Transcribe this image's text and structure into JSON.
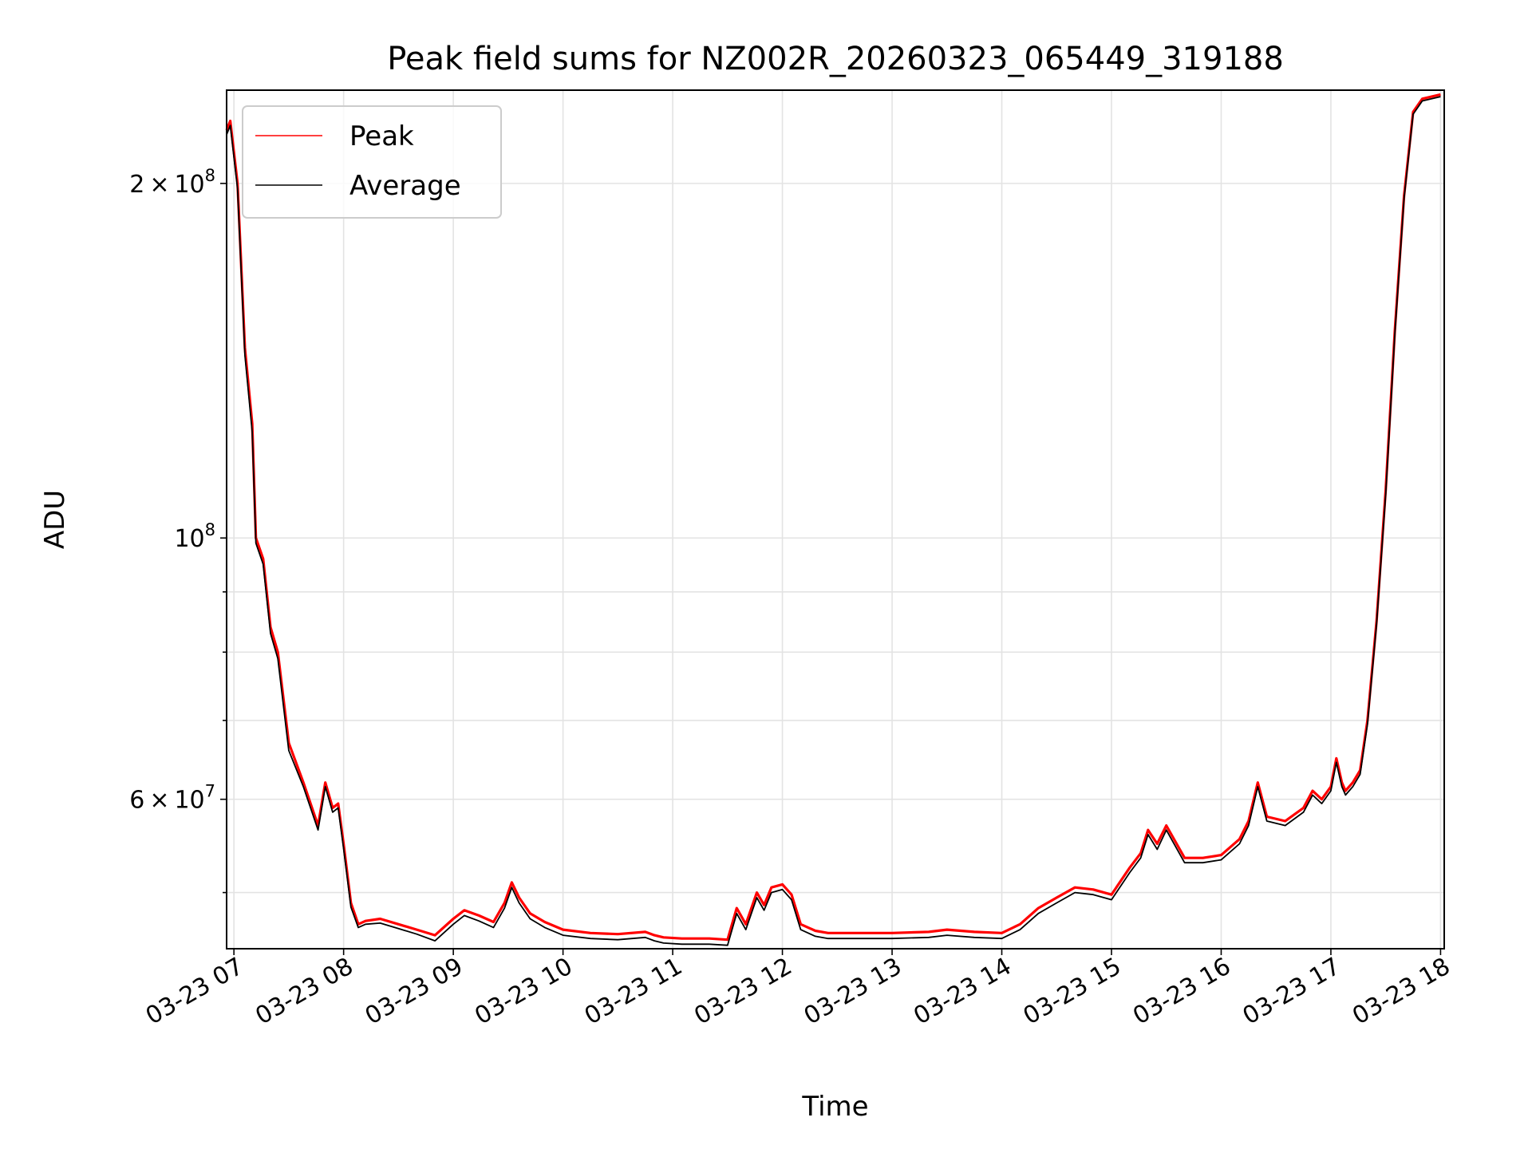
{
  "chart_data": {
    "type": "line",
    "title": "Peak field sums for NZ002R_20260323_065449_319188",
    "xlabel": "Time",
    "ylabel": "ADU",
    "yscale": "log",
    "ylim": [
      44800000,
      240000000
    ],
    "xlim": [
      "2026-03-23 06:56",
      "2026-03-23 18:02"
    ],
    "x_ticks": [
      "03-23 07",
      "03-23 08",
      "03-23 09",
      "03-23 10",
      "03-23 11",
      "03-23 12",
      "03-23 13",
      "03-23 14",
      "03-23 15",
      "03-23 16",
      "03-23 17",
      "03-23 18"
    ],
    "y_major_ticks": [
      {
        "value": 200000000,
        "mantissa": "2",
        "exponent": "8"
      },
      {
        "value": 100000000,
        "mantissa": "",
        "exponent": "8"
      },
      {
        "value": 60000000,
        "mantissa": "6",
        "exponent": "7"
      }
    ],
    "y_minor_ticks": [
      50000000,
      70000000,
      80000000,
      90000000
    ],
    "grid": true,
    "legend_position": "top-left",
    "series": [
      {
        "name": "Peak",
        "color": "#ff0000",
        "x": [
          "2026-03-23 06:56",
          "2026-03-23 06:58",
          "2026-03-23 07:02",
          "2026-03-23 07:06",
          "2026-03-23 07:10",
          "2026-03-23 07:12",
          "2026-03-23 07:16",
          "2026-03-23 07:20",
          "2026-03-23 07:24",
          "2026-03-23 07:30",
          "2026-03-23 07:38",
          "2026-03-23 07:46",
          "2026-03-23 07:50",
          "2026-03-23 07:54",
          "2026-03-23 07:57",
          "2026-03-23 08:00",
          "2026-03-23 08:04",
          "2026-03-23 08:08",
          "2026-03-23 08:12",
          "2026-03-23 08:20",
          "2026-03-23 08:30",
          "2026-03-23 08:40",
          "2026-03-23 08:50",
          "2026-03-23 09:00",
          "2026-03-23 09:06",
          "2026-03-23 09:14",
          "2026-03-23 09:22",
          "2026-03-23 09:28",
          "2026-03-23 09:32",
          "2026-03-23 09:36",
          "2026-03-23 09:42",
          "2026-03-23 09:50",
          "2026-03-23 10:00",
          "2026-03-23 10:15",
          "2026-03-23 10:30",
          "2026-03-23 10:45",
          "2026-03-23 10:50",
          "2026-03-23 10:55",
          "2026-03-23 11:05",
          "2026-03-23 11:20",
          "2026-03-23 11:30",
          "2026-03-23 11:35",
          "2026-03-23 11:40",
          "2026-03-23 11:46",
          "2026-03-23 11:50",
          "2026-03-23 11:54",
          "2026-03-23 12:00",
          "2026-03-23 12:05",
          "2026-03-23 12:10",
          "2026-03-23 12:18",
          "2026-03-23 12:25",
          "2026-03-23 12:40",
          "2026-03-23 13:00",
          "2026-03-23 13:20",
          "2026-03-23 13:30",
          "2026-03-23 13:45",
          "2026-03-23 14:00",
          "2026-03-23 14:10",
          "2026-03-23 14:20",
          "2026-03-23 14:30",
          "2026-03-23 14:40",
          "2026-03-23 14:50",
          "2026-03-23 15:00",
          "2026-03-23 15:10",
          "2026-03-23 15:16",
          "2026-03-23 15:20",
          "2026-03-23 15:25",
          "2026-03-23 15:30",
          "2026-03-23 15:40",
          "2026-03-23 15:50",
          "2026-03-23 16:00",
          "2026-03-23 16:10",
          "2026-03-23 16:15",
          "2026-03-23 16:20",
          "2026-03-23 16:25",
          "2026-03-23 16:35",
          "2026-03-23 16:45",
          "2026-03-23 16:50",
          "2026-03-23 16:55",
          "2026-03-23 17:00",
          "2026-03-23 17:03",
          "2026-03-23 17:06",
          "2026-03-23 17:08",
          "2026-03-23 17:12",
          "2026-03-23 17:16",
          "2026-03-23 17:20",
          "2026-03-23 17:25",
          "2026-03-23 17:30",
          "2026-03-23 17:35",
          "2026-03-23 17:40",
          "2026-03-23 17:45",
          "2026-03-23 17:50",
          "2026-03-23 18:00"
        ],
        "y": [
          222000000,
          226000000,
          200000000,
          145000000,
          125000000,
          100000000,
          96000000,
          84000000,
          80000000,
          67000000,
          62000000,
          57000000,
          62000000,
          59000000,
          59500000,
          55000000,
          49000000,
          47000000,
          47300000,
          47500000,
          47000000,
          46500000,
          46000000,
          47500000,
          48300000,
          47800000,
          47200000,
          49000000,
          51000000,
          49500000,
          48000000,
          47200000,
          46500000,
          46200000,
          46100000,
          46300000,
          46000000,
          45800000,
          45700000,
          45700000,
          45600000,
          48500000,
          47000000,
          50000000,
          48800000,
          50500000,
          50800000,
          49800000,
          47000000,
          46400000,
          46200000,
          46200000,
          46200000,
          46300000,
          46500000,
          46300000,
          46200000,
          47000000,
          48500000,
          49500000,
          50500000,
          50300000,
          49800000,
          52500000,
          54000000,
          56500000,
          55000000,
          57000000,
          53500000,
          53500000,
          53800000,
          55500000,
          57500000,
          62000000,
          58000000,
          57500000,
          59000000,
          61000000,
          60000000,
          61500000,
          65000000,
          62000000,
          61000000,
          62000000,
          63500000,
          70000000,
          85000000,
          110000000,
          150000000,
          195000000,
          230000000,
          236000000,
          238000000
        ]
      },
      {
        "name": "Average",
        "color": "#000000",
        "x": [
          "2026-03-23 06:56",
          "2026-03-23 06:58",
          "2026-03-23 07:02",
          "2026-03-23 07:06",
          "2026-03-23 07:10",
          "2026-03-23 07:12",
          "2026-03-23 07:16",
          "2026-03-23 07:20",
          "2026-03-23 07:24",
          "2026-03-23 07:30",
          "2026-03-23 07:38",
          "2026-03-23 07:46",
          "2026-03-23 07:50",
          "2026-03-23 07:54",
          "2026-03-23 07:57",
          "2026-03-23 08:00",
          "2026-03-23 08:04",
          "2026-03-23 08:08",
          "2026-03-23 08:12",
          "2026-03-23 08:20",
          "2026-03-23 08:30",
          "2026-03-23 08:40",
          "2026-03-23 08:50",
          "2026-03-23 09:00",
          "2026-03-23 09:06",
          "2026-03-23 09:14",
          "2026-03-23 09:22",
          "2026-03-23 09:28",
          "2026-03-23 09:32",
          "2026-03-23 09:36",
          "2026-03-23 09:42",
          "2026-03-23 09:50",
          "2026-03-23 10:00",
          "2026-03-23 10:15",
          "2026-03-23 10:30",
          "2026-03-23 10:45",
          "2026-03-23 10:50",
          "2026-03-23 10:55",
          "2026-03-23 11:05",
          "2026-03-23 11:20",
          "2026-03-23 11:30",
          "2026-03-23 11:35",
          "2026-03-23 11:40",
          "2026-03-23 11:46",
          "2026-03-23 11:50",
          "2026-03-23 11:54",
          "2026-03-23 12:00",
          "2026-03-23 12:05",
          "2026-03-23 12:10",
          "2026-03-23 12:18",
          "2026-03-23 12:25",
          "2026-03-23 12:40",
          "2026-03-23 13:00",
          "2026-03-23 13:20",
          "2026-03-23 13:30",
          "2026-03-23 13:45",
          "2026-03-23 14:00",
          "2026-03-23 14:10",
          "2026-03-23 14:20",
          "2026-03-23 14:30",
          "2026-03-23 14:40",
          "2026-03-23 14:50",
          "2026-03-23 15:00",
          "2026-03-23 15:10",
          "2026-03-23 15:16",
          "2026-03-23 15:20",
          "2026-03-23 15:25",
          "2026-03-23 15:30",
          "2026-03-23 15:40",
          "2026-03-23 15:50",
          "2026-03-23 16:00",
          "2026-03-23 16:10",
          "2026-03-23 16:15",
          "2026-03-23 16:20",
          "2026-03-23 16:25",
          "2026-03-23 16:35",
          "2026-03-23 16:45",
          "2026-03-23 16:50",
          "2026-03-23 16:55",
          "2026-03-23 17:00",
          "2026-03-23 17:03",
          "2026-03-23 17:06",
          "2026-03-23 17:08",
          "2026-03-23 17:12",
          "2026-03-23 17:16",
          "2026-03-23 17:20",
          "2026-03-23 17:25",
          "2026-03-23 17:30",
          "2026-03-23 17:35",
          "2026-03-23 17:40",
          "2026-03-23 17:45",
          "2026-03-23 17:50",
          "2026-03-23 18:00"
        ],
        "y": [
          220000000,
          224000000,
          198000000,
          143000000,
          123000000,
          99000000,
          95000000,
          83000000,
          79000000,
          66000000,
          61500000,
          56500000,
          61500000,
          58500000,
          59000000,
          54500000,
          48600000,
          46700000,
          47000000,
          47100000,
          46600000,
          46100000,
          45500000,
          47000000,
          47800000,
          47300000,
          46700000,
          48500000,
          50500000,
          49000000,
          47500000,
          46700000,
          46000000,
          45700000,
          45600000,
          45800000,
          45500000,
          45300000,
          45200000,
          45200000,
          45100000,
          48000000,
          46500000,
          49500000,
          48300000,
          50000000,
          50300000,
          49300000,
          46500000,
          45900000,
          45700000,
          45700000,
          45700000,
          45800000,
          46000000,
          45800000,
          45700000,
          46500000,
          48000000,
          49000000,
          50000000,
          49800000,
          49300000,
          52000000,
          53500000,
          56000000,
          54400000,
          56500000,
          53000000,
          53000000,
          53300000,
          55000000,
          57000000,
          61500000,
          57500000,
          57000000,
          58500000,
          60500000,
          59500000,
          61000000,
          64500000,
          61500000,
          60500000,
          61500000,
          63000000,
          69500000,
          84500000,
          109000000,
          149000000,
          194000000,
          229000000,
          235000000,
          237000000
        ]
      }
    ]
  }
}
